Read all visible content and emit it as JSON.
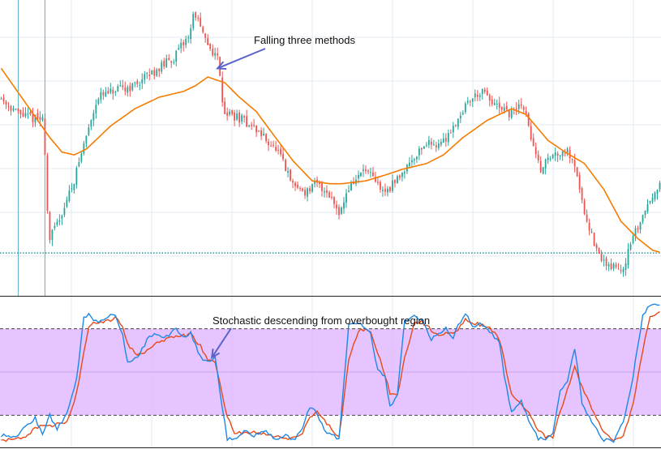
{
  "chart_data": [
    {
      "type": "candlestick",
      "title": "",
      "x_count": 272,
      "ylim": [
        0,
        100
      ],
      "colors": {
        "bull": "#26a69a",
        "bear": "#ef5350",
        "ma": "#f57c00",
        "grid": "#e3eaf2",
        "vline": "#5fb3c8",
        "hline": "#1e9aa0"
      },
      "horizontal_line": 14,
      "vertical_lines": [
        7,
        18
      ],
      "anchors": [
        [
          0,
          68
        ],
        [
          8,
          62
        ],
        [
          18,
          60
        ],
        [
          20,
          18
        ],
        [
          25,
          27
        ],
        [
          30,
          38
        ],
        [
          40,
          68
        ],
        [
          55,
          72
        ],
        [
          60,
          75
        ],
        [
          72,
          82
        ],
        [
          78,
          90
        ],
        [
          80,
          98
        ],
        [
          84,
          88
        ],
        [
          90,
          81
        ],
        [
          92,
          63
        ],
        [
          100,
          60
        ],
        [
          105,
          57
        ],
        [
          110,
          53
        ],
        [
          115,
          48
        ],
        [
          120,
          38
        ],
        [
          126,
          35
        ],
        [
          130,
          38
        ],
        [
          135,
          35
        ],
        [
          140,
          28
        ],
        [
          143,
          36
        ],
        [
          150,
          43
        ],
        [
          155,
          38
        ],
        [
          158,
          35
        ],
        [
          162,
          38
        ],
        [
          168,
          45
        ],
        [
          175,
          52
        ],
        [
          182,
          52
        ],
        [
          188,
          60
        ],
        [
          193,
          67
        ],
        [
          198,
          70
        ],
        [
          205,
          64
        ],
        [
          210,
          62
        ],
        [
          215,
          66
        ],
        [
          222,
          43
        ],
        [
          226,
          47
        ],
        [
          232,
          50
        ],
        [
          236,
          47
        ],
        [
          240,
          30
        ],
        [
          246,
          13
        ],
        [
          250,
          10
        ],
        [
          256,
          8
        ],
        [
          260,
          18
        ],
        [
          265,
          28
        ],
        [
          270,
          37
        ]
      ],
      "moving_average": {
        "period": 20,
        "anchors": [
          [
            0,
            78
          ],
          [
            10,
            66
          ],
          [
            20,
            54
          ],
          [
            25,
            49
          ],
          [
            30,
            48
          ],
          [
            35,
            50
          ],
          [
            45,
            58
          ],
          [
            55,
            64
          ],
          [
            65,
            68
          ],
          [
            75,
            70
          ],
          [
            80,
            72
          ],
          [
            85,
            75
          ],
          [
            92,
            73
          ],
          [
            98,
            68
          ],
          [
            105,
            63
          ],
          [
            112,
            55
          ],
          [
            120,
            46
          ],
          [
            128,
            39
          ],
          [
            135,
            38
          ],
          [
            140,
            38
          ],
          [
            150,
            39
          ],
          [
            158,
            41
          ],
          [
            165,
            43
          ],
          [
            175,
            45
          ],
          [
            182,
            48
          ],
          [
            190,
            54
          ],
          [
            200,
            60
          ],
          [
            210,
            64
          ],
          [
            216,
            62
          ],
          [
            225,
            53
          ],
          [
            232,
            49
          ],
          [
            240,
            45
          ],
          [
            248,
            36
          ],
          [
            255,
            25
          ],
          [
            262,
            19
          ],
          [
            268,
            15
          ],
          [
            272,
            14
          ]
        ]
      },
      "annotation": {
        "text": "Falling three methods",
        "target_x": 88,
        "target_y": 78
      }
    },
    {
      "type": "line",
      "ylim": [
        0,
        100
      ],
      "series": [
        {
          "name": "",
          "color": "#1e88e5",
          "anchors": [
            [
              0,
              6
            ],
            [
              6,
              5
            ],
            [
              10,
              12
            ],
            [
              14,
              18
            ],
            [
              17,
              7
            ],
            [
              20,
              20
            ],
            [
              23,
              10
            ],
            [
              27,
              22
            ],
            [
              31,
              45
            ],
            [
              34,
              88
            ],
            [
              36,
              90
            ],
            [
              38,
              86
            ],
            [
              40,
              85
            ],
            [
              44,
              89
            ],
            [
              47,
              90
            ],
            [
              50,
              75
            ],
            [
              52,
              56
            ],
            [
              56,
              60
            ],
            [
              60,
              72
            ],
            [
              63,
              77
            ],
            [
              66,
              74
            ],
            [
              69,
              76
            ],
            [
              72,
              80
            ],
            [
              75,
              74
            ],
            [
              78,
              77
            ],
            [
              82,
              60
            ],
            [
              85,
              57
            ],
            [
              88,
              60
            ],
            [
              93,
              3
            ],
            [
              96,
              4
            ],
            [
              100,
              9
            ],
            [
              104,
              6
            ],
            [
              108,
              10
            ],
            [
              111,
              6
            ],
            [
              114,
              3
            ],
            [
              117,
              6
            ],
            [
              121,
              3
            ],
            [
              124,
              12
            ],
            [
              127,
              26
            ],
            [
              130,
              22
            ],
            [
              133,
              9
            ],
            [
              136,
              7
            ],
            [
              139,
              3
            ],
            [
              143,
              82
            ],
            [
              147,
              85
            ],
            [
              152,
              76
            ],
            [
              155,
              51
            ],
            [
              158,
              47
            ],
            [
              160,
              26
            ],
            [
              163,
              34
            ],
            [
              166,
              85
            ],
            [
              170,
              89
            ],
            [
              173,
              86
            ],
            [
              177,
              73
            ],
            [
              180,
              77
            ],
            [
              183,
              80
            ],
            [
              186,
              73
            ],
            [
              188,
              82
            ],
            [
              191,
              91
            ],
            [
              194,
              81
            ],
            [
              197,
              85
            ],
            [
              201,
              78
            ],
            [
              205,
              70
            ],
            [
              207,
              48
            ],
            [
              210,
              22
            ],
            [
              214,
              30
            ],
            [
              218,
              13
            ],
            [
              221,
              4
            ],
            [
              224,
              3
            ],
            [
              227,
              7
            ],
            [
              230,
              36
            ],
            [
              233,
              44
            ],
            [
              236,
              67
            ],
            [
              239,
              29
            ],
            [
              244,
              12
            ],
            [
              248,
              3
            ],
            [
              252,
              2
            ],
            [
              256,
              15
            ],
            [
              260,
              47
            ],
            [
              264,
              89
            ],
            [
              267,
              96
            ],
            [
              271,
              97
            ]
          ]
        },
        {
          "name": "",
          "color": "#e64a19",
          "anchors": [
            [
              0,
              2
            ],
            [
              6,
              4
            ],
            [
              10,
              4
            ],
            [
              14,
              12
            ],
            [
              17,
              12
            ],
            [
              20,
              12
            ],
            [
              23,
              14
            ],
            [
              27,
              15
            ],
            [
              31,
              35
            ],
            [
              34,
              63
            ],
            [
              36,
              82
            ],
            [
              38,
              85
            ],
            [
              40,
              84
            ],
            [
              44,
              85
            ],
            [
              47,
              88
            ],
            [
              50,
              82
            ],
            [
              52,
              69
            ],
            [
              56,
              62
            ],
            [
              60,
              65
            ],
            [
              63,
              70
            ],
            [
              66,
              71
            ],
            [
              69,
              73
            ],
            [
              72,
              75
            ],
            [
              75,
              75
            ],
            [
              78,
              76
            ],
            [
              82,
              68
            ],
            [
              85,
              58
            ],
            [
              88,
              57
            ],
            [
              93,
              19
            ],
            [
              96,
              8
            ],
            [
              100,
              8
            ],
            [
              104,
              8
            ],
            [
              108,
              7
            ],
            [
              111,
              6
            ],
            [
              114,
              5
            ],
            [
              117,
              4
            ],
            [
              121,
              4
            ],
            [
              124,
              8
            ],
            [
              127,
              19
            ],
            [
              130,
              22
            ],
            [
              133,
              17
            ],
            [
              136,
              10
            ],
            [
              139,
              5
            ],
            [
              143,
              58
            ],
            [
              147,
              79
            ],
            [
              152,
              79
            ],
            [
              155,
              63
            ],
            [
              158,
              47
            ],
            [
              160,
              35
            ],
            [
              163,
              33
            ],
            [
              166,
              61
            ],
            [
              170,
              83
            ],
            [
              173,
              85
            ],
            [
              177,
              79
            ],
            [
              180,
              76
            ],
            [
              183,
              77
            ],
            [
              186,
              76
            ],
            [
              188,
              80
            ],
            [
              191,
              87
            ],
            [
              194,
              84
            ],
            [
              197,
              83
            ],
            [
              201,
              80
            ],
            [
              205,
              73
            ],
            [
              207,
              58
            ],
            [
              210,
              34
            ],
            [
              214,
              28
            ],
            [
              218,
              20
            ],
            [
              221,
              9
            ],
            [
              224,
              5
            ],
            [
              227,
              5
            ],
            [
              230,
              22
            ],
            [
              233,
              38
            ],
            [
              236,
              53
            ],
            [
              239,
              40
            ],
            [
              244,
              21
            ],
            [
              248,
              8
            ],
            [
              252,
              3
            ],
            [
              256,
              6
            ],
            [
              260,
              27
            ],
            [
              264,
              65
            ],
            [
              267,
              88
            ],
            [
              271,
              93
            ]
          ]
        }
      ],
      "overbought": 80,
      "oversold": 20,
      "band_color": "#e1baff",
      "annotation": {
        "text": "Stochastic descending from overbought region",
        "target_x": 86,
        "target_y": 60
      }
    }
  ]
}
